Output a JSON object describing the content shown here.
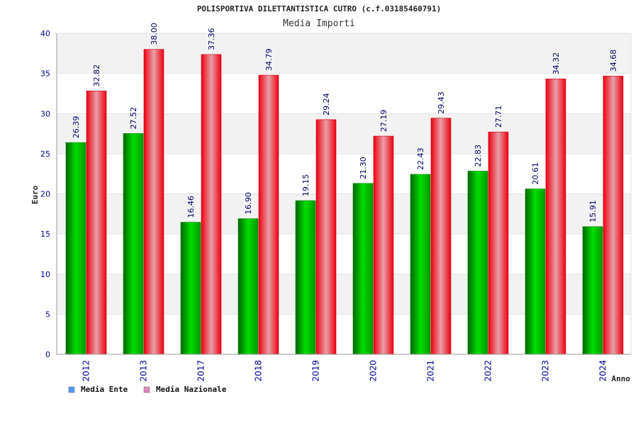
{
  "chart_data": {
    "type": "bar",
    "title": "POLISPORTIVA DILETTANTISTICA CUTRO (c.f.03185460791)",
    "subtitle": "Media Importi",
    "xlabel": "Anno",
    "ylabel": "Euro",
    "ylim": [
      0,
      40
    ],
    "yticks": [
      0,
      5,
      10,
      15,
      20,
      25,
      30,
      35,
      40
    ],
    "categories": [
      "2012",
      "2013",
      "2017",
      "2018",
      "2019",
      "2020",
      "2021",
      "2022",
      "2023",
      "2024"
    ],
    "series": [
      {
        "name": "Media Ente",
        "values": [
          26.39,
          27.52,
          16.46,
          16.9,
          19.15,
          21.3,
          22.43,
          22.83,
          20.61,
          15.91
        ],
        "labels": [
          "26.39",
          "27.52",
          "16.46",
          "16.90",
          "19.15",
          "21.30",
          "22.43",
          "22.83",
          "20.61",
          "15.91"
        ],
        "color": "#00c000",
        "legend_color": "#5599ee"
      },
      {
        "name": "Media Nazionale",
        "values": [
          32.82,
          38.0,
          37.36,
          34.79,
          29.24,
          27.19,
          29.43,
          27.71,
          34.32,
          34.68
        ],
        "labels": [
          "32.82",
          "38.00",
          "37.36",
          "34.79",
          "29.24",
          "27.19",
          "29.43",
          "27.71",
          "34.32",
          "34.68"
        ],
        "color": "#ee1122",
        "legend_color": "#dd88bb"
      }
    ],
    "grid": true,
    "legend_position": "bottom-left"
  }
}
